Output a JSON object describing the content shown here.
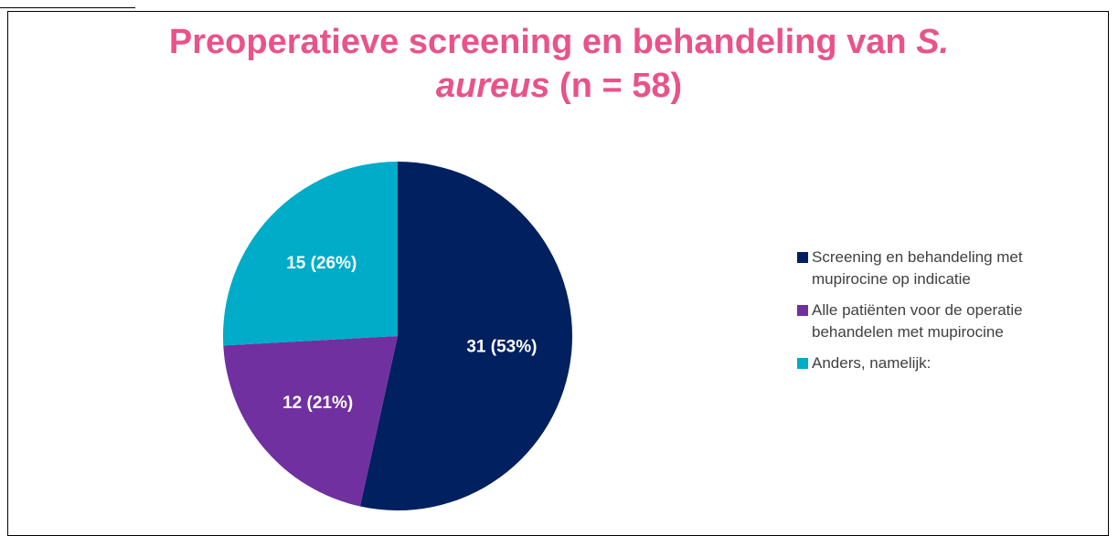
{
  "chart_data": {
    "type": "pie",
    "title": [
      "Preoperatieve screening en behandeling van ",
      "S.",
      "aureus",
      " (n = 58)"
    ],
    "categories": [
      "Screening en behandeling met mupirocine op indicatie",
      "Alle patiënten voor de operatie behandelen met mupirocine",
      "Anders, namelijk:"
    ],
    "values": [
      31,
      12,
      15
    ],
    "value_labels": [
      "31 (53%)",
      "12 (21%)",
      "15 (26%)"
    ],
    "colors": [
      "#002060",
      "#7030a0",
      "#00acc8"
    ],
    "legend": "right"
  }
}
